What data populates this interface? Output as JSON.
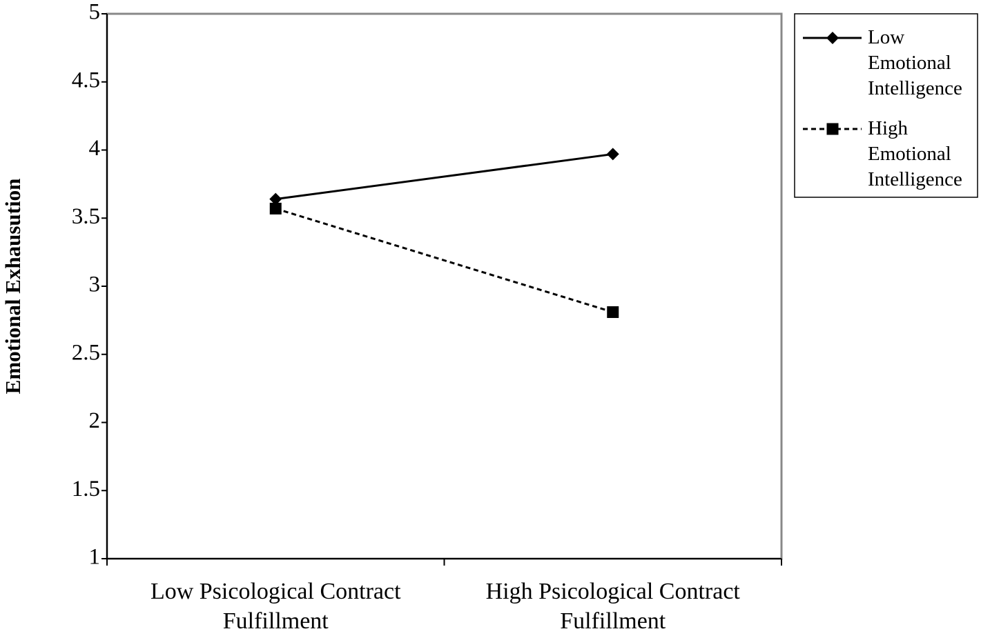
{
  "chart_data": {
    "type": "line",
    "y_label": "Emotional Exhausution",
    "categories": [
      "Low Psicological Contract Fulfillment",
      "High Psicological Contract Fulfillment"
    ],
    "series": [
      {
        "name": "Low Emotional Intelligence",
        "color": "#000000",
        "dash": "solid",
        "marker": "diamond",
        "values": [
          3.64,
          3.97
        ]
      },
      {
        "name": "High Emotional Intelligence",
        "color": "#000000",
        "dash": "dashed",
        "marker": "square",
        "values": [
          3.57,
          2.81
        ]
      }
    ],
    "ylim": [
      1,
      5
    ],
    "yticks": [
      1,
      1.5,
      2,
      2.5,
      3,
      3.5,
      4,
      4.5,
      5
    ],
    "legend": "right"
  }
}
